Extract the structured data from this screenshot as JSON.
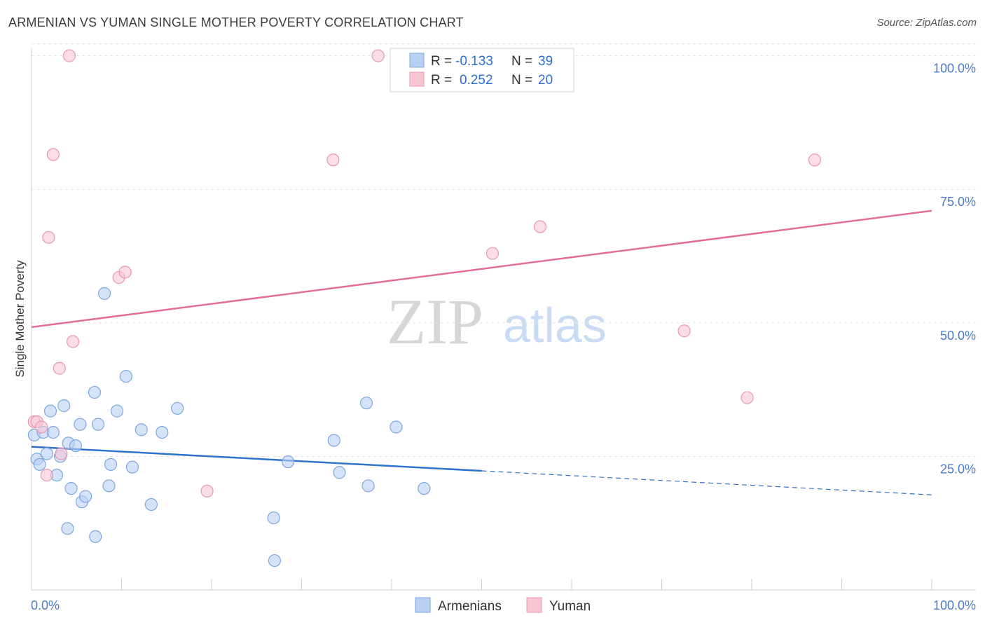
{
  "header": {
    "title": "ARMENIAN VS YUMAN SINGLE MOTHER POVERTY CORRELATION CHART",
    "source": "Source: ZipAtlas.com"
  },
  "watermark": {
    "zip": "ZIP",
    "atlas": "atlas"
  },
  "legend": {
    "rows": [
      {
        "r_label": "R =",
        "r_value": "-0.133",
        "n_label": "N =",
        "n_value": "39"
      },
      {
        "r_label": "R =",
        "r_value": "0.252",
        "n_label": "N =",
        "n_value": "20"
      }
    ]
  },
  "bottom_legend": {
    "armenians": "Armenians",
    "yuman": "Yuman"
  },
  "colors": {
    "armenians_fill": "#b8d0f3",
    "armenians_stroke": "#7fa7df",
    "armenians_line": "#2f72c9",
    "yuman_fill": "#f8c6d3",
    "yuman_stroke": "#e897b0",
    "yuman_line": "#e26e98",
    "tick_text": "#4a7cc7",
    "grid": "#e3e3e3"
  },
  "chart_data": {
    "type": "scatter",
    "title": "ARMENIAN VS YUMAN SINGLE MOTHER POVERTY CORRELATION CHART",
    "xlabel": "",
    "ylabel": "Single Mother Poverty",
    "xlim": [
      0,
      100
    ],
    "ylim": [
      0,
      105
    ],
    "x_tick_labels": [
      "0.0%",
      "100.0%"
    ],
    "y_ticks": [
      25,
      50,
      75,
      100
    ],
    "y_tick_labels": [
      "25.0%",
      "50.0%",
      "75.0%",
      "100.0%"
    ],
    "grid": "horizontal dashed",
    "legend_position": "top-center",
    "series": [
      {
        "name": "Armenians",
        "r": -0.133,
        "n": 39,
        "points": [
          [
            0.3,
            29
          ],
          [
            0.6,
            24.5
          ],
          [
            0.9,
            23.5
          ],
          [
            1.3,
            29.5
          ],
          [
            1.7,
            25.5
          ],
          [
            2.1,
            33.5
          ],
          [
            2.4,
            29.5
          ],
          [
            2.8,
            21.5
          ],
          [
            3.2,
            25
          ],
          [
            3.6,
            34.5
          ],
          [
            4.1,
            27.5
          ],
          [
            4.4,
            19
          ],
          [
            4.9,
            27
          ],
          [
            5.4,
            31
          ],
          [
            5.6,
            16.5
          ],
          [
            6,
            17.5
          ],
          [
            7,
            37
          ],
          [
            7.4,
            31
          ],
          [
            8.1,
            55.5
          ],
          [
            8.6,
            19.5
          ],
          [
            8.8,
            23.5
          ],
          [
            9.5,
            33.5
          ],
          [
            10.5,
            40
          ],
          [
            11.2,
            23
          ],
          [
            12.2,
            30
          ],
          [
            13.3,
            16
          ],
          [
            14.5,
            29.5
          ],
          [
            16.2,
            34
          ],
          [
            4,
            11.5
          ],
          [
            7.1,
            10
          ],
          [
            26.9,
            13.5
          ],
          [
            27,
            5.5
          ],
          [
            28.5,
            24
          ],
          [
            33.6,
            28
          ],
          [
            34.2,
            22
          ],
          [
            37.2,
            35
          ],
          [
            37.4,
            19.5
          ],
          [
            40.5,
            30.5
          ],
          [
            43.6,
            19
          ]
        ],
        "trend": {
          "x0": 0,
          "y0": 26.8,
          "x1": 50,
          "y1": 22.3,
          "dashed_to_x": 100,
          "dashed_to_y": 17.8
        }
      },
      {
        "name": "Yuman",
        "r": 0.252,
        "n": 20,
        "points": [
          [
            0.3,
            31.5
          ],
          [
            0.6,
            31.5
          ],
          [
            1.1,
            30.5
          ],
          [
            1.7,
            21.5
          ],
          [
            1.9,
            66
          ],
          [
            2.4,
            81.5
          ],
          [
            3.1,
            41.5
          ],
          [
            3.3,
            25.5
          ],
          [
            4.2,
            100
          ],
          [
            4.6,
            46.5
          ],
          [
            9.7,
            58.5
          ],
          [
            10.4,
            59.5
          ],
          [
            19.5,
            18.5
          ],
          [
            33.5,
            80.5
          ],
          [
            38.5,
            100
          ],
          [
            51.2,
            63
          ],
          [
            56.5,
            68
          ],
          [
            72.5,
            48.5
          ],
          [
            79.5,
            36
          ],
          [
            87,
            80.5
          ]
        ],
        "trend": {
          "x0": 0,
          "y0": 49.2,
          "x1": 100,
          "y1": 71
        }
      }
    ]
  }
}
